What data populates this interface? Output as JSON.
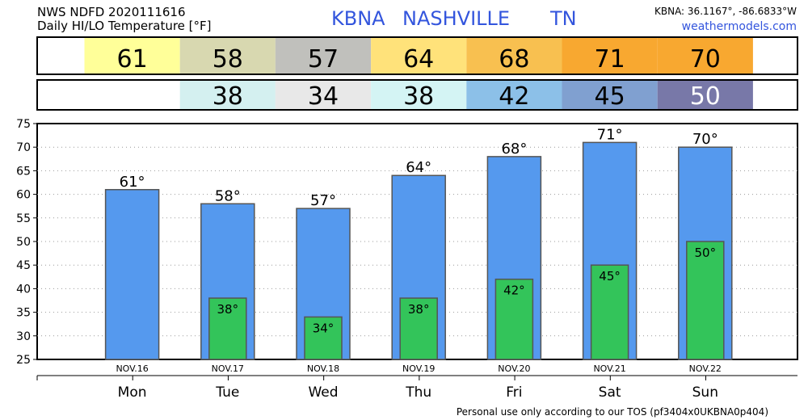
{
  "header": {
    "product_line1": "NWS NDFD 2020111616",
    "product_line2": "Daily HI/LO Temperature [°F]",
    "station_code": "KBNA",
    "station_city": "NASHVILLE",
    "station_state": "TN",
    "coordinates": "KBNA: 36.1167°, -86.6833°W",
    "site": "weathermodels.com",
    "link_color": "#3355dd"
  },
  "footer": {
    "tos": "Personal use only according to our TOS (pf3404x0UKBNA0p404)"
  },
  "colors": {
    "hi_bar": "#5599ee",
    "lo_bar": "#33c45a",
    "hi_cells": [
      "#ffff99",
      "#d8d8b0",
      "#c0c0bc",
      "#ffe27a",
      "#f8c050",
      "#f8a830",
      "#f8a830"
    ],
    "lo_cells": [
      "#ffffff",
      "#d4f0f0",
      "#e8e8e8",
      "#d4f4f4",
      "#8cc0e8",
      "#80a0d0",
      "#7878a8"
    ],
    "lo_text": [
      "#000000",
      "#000000",
      "#000000",
      "#000000",
      "#000000",
      "#000000",
      "#ffffff"
    ]
  },
  "chart_data": {
    "type": "bar",
    "categories": [
      "Mon",
      "Tue",
      "Wed",
      "Thu",
      "Fri",
      "Sat",
      "Sun"
    ],
    "dates": [
      "NOV.16",
      "NOV.17",
      "NOV.18",
      "NOV.19",
      "NOV.20",
      "NOV.21",
      "NOV.22"
    ],
    "series": [
      {
        "values": [
          61,
          58,
          57,
          64,
          68,
          71,
          70
        ]
      },
      {
        "values": [
          null,
          38,
          34,
          38,
          42,
          45,
          50
        ]
      }
    ],
    "hi_table": [
      "61",
      "58",
      "57",
      "64",
      "68",
      "71",
      "70"
    ],
    "lo_table": [
      "",
      "38",
      "34",
      "38",
      "42",
      "45",
      "50"
    ],
    "hi_labels": [
      "61°",
      "58°",
      "57°",
      "64°",
      "68°",
      "71°",
      "70°"
    ],
    "lo_labels": [
      "",
      "38°",
      "34°",
      "38°",
      "42°",
      "45°",
      "50°"
    ],
    "ylim": [
      25,
      75
    ],
    "yticks": [
      "25",
      "30",
      "35",
      "40",
      "45",
      "50",
      "55",
      "60",
      "65",
      "70",
      "75"
    ],
    "grid": true
  }
}
